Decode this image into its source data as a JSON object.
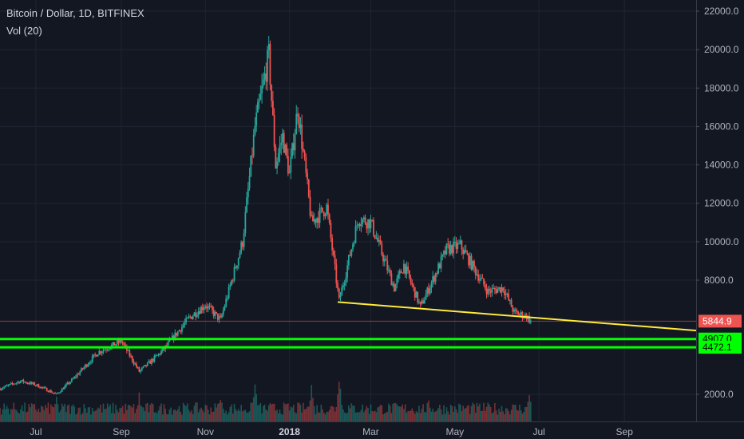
{
  "header": {
    "symbol_title": "Bitcoin / Dollar, 1D, BITFINEX",
    "volume_label": "Vol (20)"
  },
  "colors": {
    "background": "#131722",
    "up": "#26a69a",
    "down": "#ef5350",
    "trendline": "#ffeb3b",
    "support": "#00ff00",
    "last_price_bg": "#ef5350",
    "support_label_bg": "#00ff00"
  },
  "chart_data": {
    "type": "candlestick",
    "title": "Bitcoin / Dollar, 1D, BITFINEX",
    "y_ticks": [
      2000,
      8000,
      10000,
      12000,
      14000,
      16000,
      18000,
      20000,
      22000
    ],
    "y_tick_labels": [
      "2000.0",
      "8000.0",
      "10000.0",
      "12000.0",
      "14000.0",
      "16000.0",
      "18000.0",
      "20000.0",
      "22000.0"
    ],
    "ylim": [
      1000,
      22600
    ],
    "x_labels": [
      {
        "date": "2017-07-01",
        "text": "Jul",
        "bold": false
      },
      {
        "date": "2017-09-01",
        "text": "Sep",
        "bold": false
      },
      {
        "date": "2017-11-01",
        "text": "Nov",
        "bold": false
      },
      {
        "date": "2018-01-01",
        "text": "2018",
        "bold": true
      },
      {
        "date": "2018-03-01",
        "text": "Mar",
        "bold": false
      },
      {
        "date": "2018-05-01",
        "text": "May",
        "bold": false
      },
      {
        "date": "2018-07-01",
        "text": "Jul",
        "bold": false
      },
      {
        "date": "2018-09-01",
        "text": "Sep",
        "bold": false
      }
    ],
    "xlim": [
      "2017-06-05",
      "2018-10-23"
    ],
    "price_path": [
      [
        "2017-06-05",
        2300
      ],
      [
        "2017-06-20",
        2700
      ],
      [
        "2017-07-01",
        2500
      ],
      [
        "2017-07-16",
        2000
      ],
      [
        "2017-07-28",
        2800
      ],
      [
        "2017-08-15",
        4200
      ],
      [
        "2017-09-01",
        4800
      ],
      [
        "2017-09-14",
        3200
      ],
      [
        "2017-09-22",
        3700
      ],
      [
        "2017-10-01",
        4300
      ],
      [
        "2017-10-20",
        6000
      ],
      [
        "2017-11-01",
        6700
      ],
      [
        "2017-11-12",
        5900
      ],
      [
        "2017-11-28",
        10000
      ],
      [
        "2017-12-07",
        16000
      ],
      [
        "2017-12-17",
        19700
      ],
      [
        "2017-12-22",
        14000
      ],
      [
        "2017-12-27",
        15500
      ],
      [
        "2018-01-01",
        13500
      ],
      [
        "2018-01-07",
        17000
      ],
      [
        "2018-01-17",
        11000
      ],
      [
        "2018-01-28",
        11800
      ],
      [
        "2018-02-06",
        6900
      ],
      [
        "2018-02-20",
        11200
      ],
      [
        "2018-03-01",
        11000
      ],
      [
        "2018-03-18",
        7600
      ],
      [
        "2018-03-25",
        8800
      ],
      [
        "2018-04-06",
        6600
      ],
      [
        "2018-04-25",
        9600
      ],
      [
        "2018-05-05",
        9800
      ],
      [
        "2018-05-25",
        7400
      ],
      [
        "2018-06-05",
        7600
      ],
      [
        "2018-06-13",
        6300
      ],
      [
        "2018-06-22",
        6100
      ],
      [
        "2018-06-25",
        5840
      ]
    ],
    "volume_peaks": [
      [
        "2017-07-16",
        0.5
      ],
      [
        "2017-09-14",
        0.55
      ],
      [
        "2017-11-12",
        0.55
      ],
      [
        "2017-12-07",
        0.75
      ],
      [
        "2018-01-17",
        0.8
      ],
      [
        "2018-02-06",
        1.0
      ],
      [
        "2018-04-12",
        0.5
      ],
      [
        "2018-06-24",
        0.6
      ]
    ],
    "trendline": {
      "start": [
        "2018-02-05",
        6850
      ],
      "end": [
        "2018-10-23",
        5350
      ]
    },
    "support_levels": [
      4907.0,
      4472.1
    ],
    "support_labels": [
      "4907.0",
      "4472.1"
    ],
    "last_price": 5844.9,
    "last_price_label": "5844.9"
  }
}
